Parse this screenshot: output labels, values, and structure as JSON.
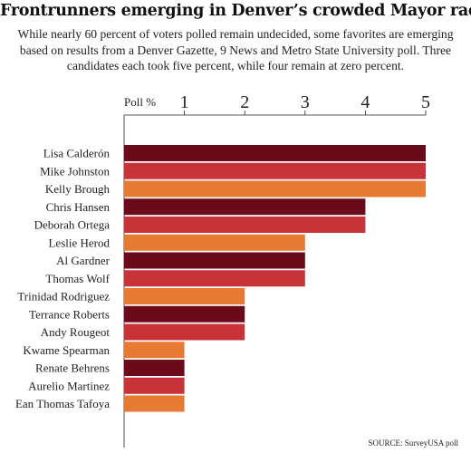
{
  "title": "Frontrunners emerging in Denver’s crowded Mayor race",
  "subtitle": "While nearly 60 percent of voters polled remain undecided, some favorites are emerging based on results from a Denver Gazette, 9 News and Metro State University poll. Three candidates each took five percent, while four remain at zero percent.",
  "source": "SOURCE: SurveyUSA poll",
  "colors": {
    "dark": "#6a0a1a",
    "red": "#c8333a",
    "orange": "#e77a33"
  },
  "chart_data": {
    "type": "bar",
    "orientation": "horizontal",
    "xlabel": "Poll %",
    "xticks": [
      "1",
      "2",
      "3",
      "4",
      "5"
    ],
    "xlim": [
      0,
      5
    ],
    "grid": false,
    "categories": [
      "Lisa Calderón",
      "Mike Johnston",
      "Kelly Brough",
      "Chris Hansen",
      "Deborah Ortega",
      "Leslie Herod",
      "Al Gardner",
      "Thomas Wolf",
      "Trinidad Rodriguez",
      "Terrance Roberts",
      "Andy Rougeot",
      "Kwame Spearman",
      "Renate Behrens",
      "Aurelio Martinez",
      "Ean Thomas Tafoya"
    ],
    "values": [
      5,
      5,
      5,
      4,
      4,
      3,
      3,
      3,
      2,
      2,
      2,
      1,
      1,
      1,
      1
    ],
    "bar_colors": [
      "dark",
      "red",
      "orange",
      "dark",
      "red",
      "orange",
      "dark",
      "red",
      "orange",
      "dark",
      "red",
      "orange",
      "dark",
      "red",
      "orange"
    ]
  }
}
